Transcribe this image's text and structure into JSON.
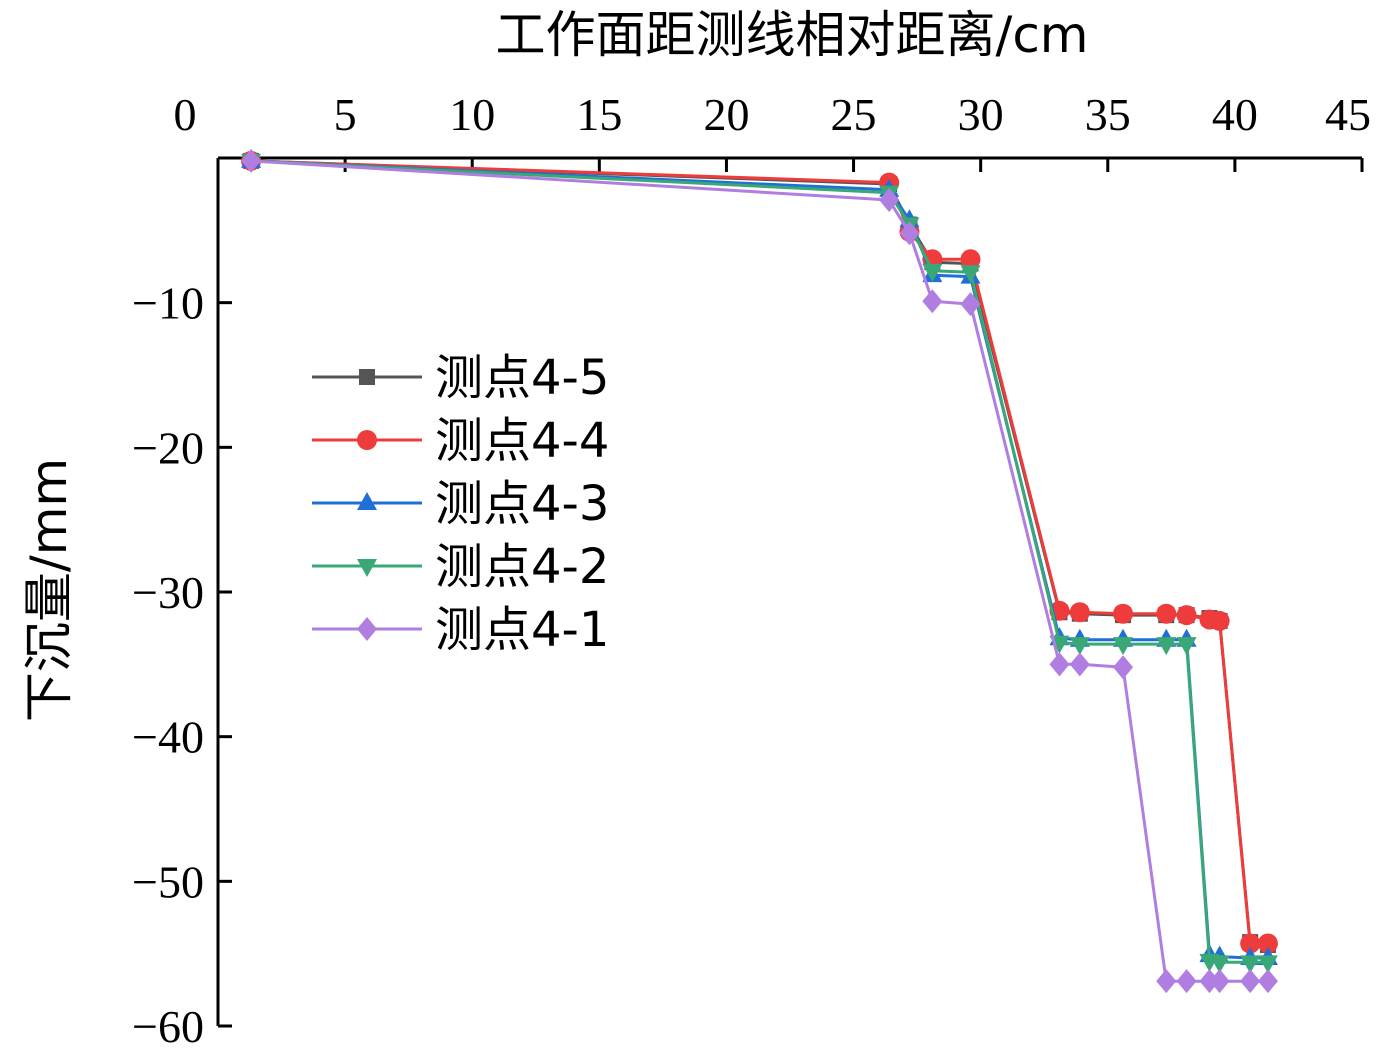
{
  "chart_data": {
    "type": "line",
    "xlabel": "工作面距测线相对距离/cm",
    "ylabel": "下沉量/mm",
    "xlim": [
      0,
      45
    ],
    "ylim": [
      -60,
      0
    ],
    "x_ticks": [
      0,
      5,
      10,
      15,
      20,
      25,
      30,
      35,
      40,
      45
    ],
    "y_ticks": [
      -10,
      -20,
      -30,
      -40,
      -50,
      -60
    ],
    "x_axis_position": "top",
    "grid": false,
    "legend_position": "left-middle",
    "series": [
      {
        "name": "测点4-5",
        "color": "#555555",
        "marker": "square",
        "points": [
          [
            1.3,
            -0.2
          ],
          [
            26.4,
            -1.8
          ],
          [
            27.2,
            -4.6
          ],
          [
            28.1,
            -7.2
          ],
          [
            29.6,
            -7.3
          ],
          [
            33.1,
            -31.4
          ],
          [
            33.9,
            -31.5
          ],
          [
            35.6,
            -31.6
          ],
          [
            37.3,
            -31.6
          ],
          [
            38.1,
            -31.6
          ],
          [
            39.0,
            -31.8
          ],
          [
            39.4,
            -32.0
          ],
          [
            40.6,
            -54.2
          ],
          [
            41.3,
            -54.4
          ]
        ]
      },
      {
        "name": "测点4-4",
        "color": "#ee3b3b",
        "marker": "circle",
        "points": [
          [
            1.3,
            -0.2
          ],
          [
            26.4,
            -1.7
          ],
          [
            27.2,
            -5.1
          ],
          [
            28.1,
            -7.0
          ],
          [
            29.6,
            -7.0
          ],
          [
            33.1,
            -31.3
          ],
          [
            33.9,
            -31.4
          ],
          [
            35.6,
            -31.5
          ],
          [
            37.3,
            -31.5
          ],
          [
            38.1,
            -31.6
          ],
          [
            39.0,
            -31.9
          ],
          [
            39.4,
            -32.0
          ],
          [
            40.6,
            -54.3
          ],
          [
            41.3,
            -54.3
          ]
        ]
      },
      {
        "name": "测点4-3",
        "color": "#1f6fd6",
        "marker": "triangle-up",
        "points": [
          [
            1.3,
            -0.2
          ],
          [
            26.4,
            -2.2
          ],
          [
            27.2,
            -4.3
          ],
          [
            28.1,
            -8.1
          ],
          [
            29.6,
            -8.2
          ],
          [
            33.1,
            -33.2
          ],
          [
            33.9,
            -33.3
          ],
          [
            35.6,
            -33.3
          ],
          [
            37.3,
            -33.3
          ],
          [
            38.1,
            -33.3
          ],
          [
            39.0,
            -55.1
          ],
          [
            39.4,
            -55.2
          ],
          [
            40.6,
            -55.3
          ],
          [
            41.3,
            -55.3
          ]
        ]
      },
      {
        "name": "测点4-2",
        "color": "#3aa876",
        "marker": "triangle-down",
        "points": [
          [
            1.3,
            -0.2
          ],
          [
            26.4,
            -2.4
          ],
          [
            27.2,
            -4.6
          ],
          [
            28.1,
            -7.8
          ],
          [
            29.6,
            -7.9
          ],
          [
            33.1,
            -33.5
          ],
          [
            33.9,
            -33.6
          ],
          [
            35.6,
            -33.6
          ],
          [
            37.3,
            -33.6
          ],
          [
            38.1,
            -33.6
          ],
          [
            39.0,
            -55.5
          ],
          [
            39.4,
            -55.6
          ],
          [
            40.6,
            -55.6
          ],
          [
            41.3,
            -55.6
          ]
        ]
      },
      {
        "name": "测点4-1",
        "color": "#b07ee0",
        "marker": "diamond",
        "points": [
          [
            1.3,
            -0.2
          ],
          [
            26.4,
            -2.9
          ],
          [
            27.2,
            -5.2
          ],
          [
            28.1,
            -9.9
          ],
          [
            29.6,
            -10.1
          ],
          [
            33.1,
            -35.0
          ],
          [
            33.9,
            -35.0
          ],
          [
            35.6,
            -35.2
          ],
          [
            37.3,
            -56.9
          ],
          [
            38.1,
            -56.9
          ],
          [
            39.0,
            -56.9
          ],
          [
            39.4,
            -56.9
          ],
          [
            40.6,
            -56.9
          ],
          [
            41.3,
            -56.9
          ]
        ]
      }
    ]
  }
}
